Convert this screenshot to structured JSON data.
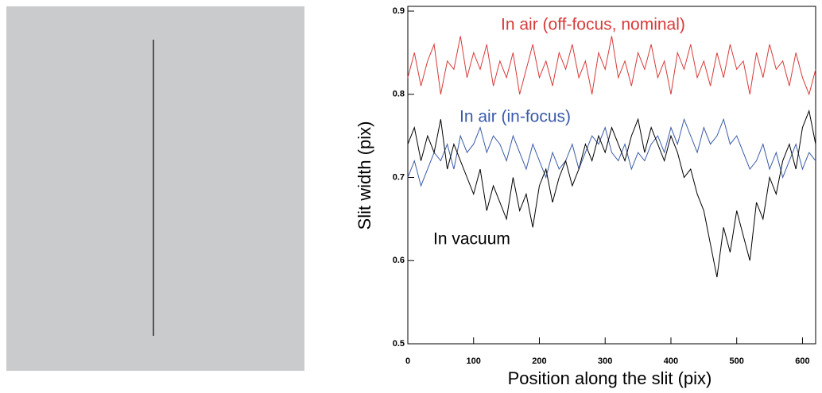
{
  "chart_data": {
    "type": "line",
    "x_label": "Position along the slit (pix)",
    "y_label": "Slit width (pix)",
    "x": [
      0,
      10,
      20,
      30,
      40,
      50,
      60,
      70,
      80,
      90,
      100,
      110,
      120,
      130,
      140,
      150,
      160,
      170,
      180,
      190,
      200,
      210,
      220,
      230,
      240,
      250,
      260,
      270,
      280,
      290,
      300,
      310,
      320,
      330,
      340,
      350,
      360,
      370,
      380,
      390,
      400,
      410,
      420,
      430,
      440,
      450,
      460,
      470,
      480,
      490,
      500,
      510,
      520,
      530,
      540,
      550,
      560,
      570,
      580,
      590,
      600,
      610,
      620
    ],
    "series": [
      {
        "name": "In air (off-focus, nominal)",
        "color": "#d83a3a",
        "values": [
          0.82,
          0.85,
          0.81,
          0.84,
          0.86,
          0.8,
          0.84,
          0.83,
          0.87,
          0.82,
          0.85,
          0.83,
          0.86,
          0.81,
          0.84,
          0.82,
          0.85,
          0.8,
          0.83,
          0.86,
          0.82,
          0.84,
          0.81,
          0.85,
          0.83,
          0.86,
          0.82,
          0.84,
          0.8,
          0.85,
          0.83,
          0.87,
          0.82,
          0.84,
          0.81,
          0.85,
          0.83,
          0.86,
          0.82,
          0.84,
          0.8,
          0.85,
          0.83,
          0.86,
          0.82,
          0.84,
          0.81,
          0.85,
          0.82,
          0.86,
          0.83,
          0.84,
          0.8,
          0.85,
          0.82,
          0.86,
          0.83,
          0.84,
          0.81,
          0.85,
          0.82,
          0.8,
          0.83
        ]
      },
      {
        "name": "In air (in-focus)",
        "color": "#3a5aa8",
        "values": [
          0.7,
          0.72,
          0.69,
          0.71,
          0.73,
          0.72,
          0.74,
          0.71,
          0.75,
          0.73,
          0.74,
          0.76,
          0.73,
          0.75,
          0.74,
          0.72,
          0.75,
          0.73,
          0.71,
          0.74,
          0.72,
          0.7,
          0.73,
          0.71,
          0.72,
          0.74,
          0.71,
          0.73,
          0.75,
          0.74,
          0.76,
          0.73,
          0.72,
          0.74,
          0.71,
          0.73,
          0.72,
          0.74,
          0.75,
          0.73,
          0.76,
          0.74,
          0.77,
          0.75,
          0.73,
          0.76,
          0.74,
          0.75,
          0.77,
          0.74,
          0.75,
          0.73,
          0.71,
          0.72,
          0.74,
          0.71,
          0.73,
          0.7,
          0.72,
          0.74,
          0.71,
          0.73,
          0.72
        ]
      },
      {
        "name": "In vacuum",
        "color": "#000000",
        "values": [
          0.74,
          0.76,
          0.72,
          0.75,
          0.73,
          0.77,
          0.71,
          0.74,
          0.72,
          0.7,
          0.68,
          0.71,
          0.66,
          0.69,
          0.67,
          0.65,
          0.7,
          0.66,
          0.68,
          0.64,
          0.69,
          0.71,
          0.67,
          0.7,
          0.72,
          0.69,
          0.71,
          0.74,
          0.72,
          0.75,
          0.73,
          0.76,
          0.74,
          0.72,
          0.75,
          0.77,
          0.73,
          0.76,
          0.74,
          0.72,
          0.75,
          0.73,
          0.7,
          0.71,
          0.68,
          0.66,
          0.62,
          0.58,
          0.64,
          0.61,
          0.66,
          0.63,
          0.6,
          0.67,
          0.65,
          0.7,
          0.68,
          0.72,
          0.74,
          0.71,
          0.76,
          0.78,
          0.74
        ]
      }
    ],
    "xlim": [
      0,
      620
    ],
    "xticks": [
      0,
      100,
      200,
      300,
      400,
      500,
      600
    ],
    "ylim": [
      0.5,
      0.9
    ],
    "yticks": [
      0.5,
      0.6,
      0.7,
      0.8,
      0.9
    ]
  }
}
